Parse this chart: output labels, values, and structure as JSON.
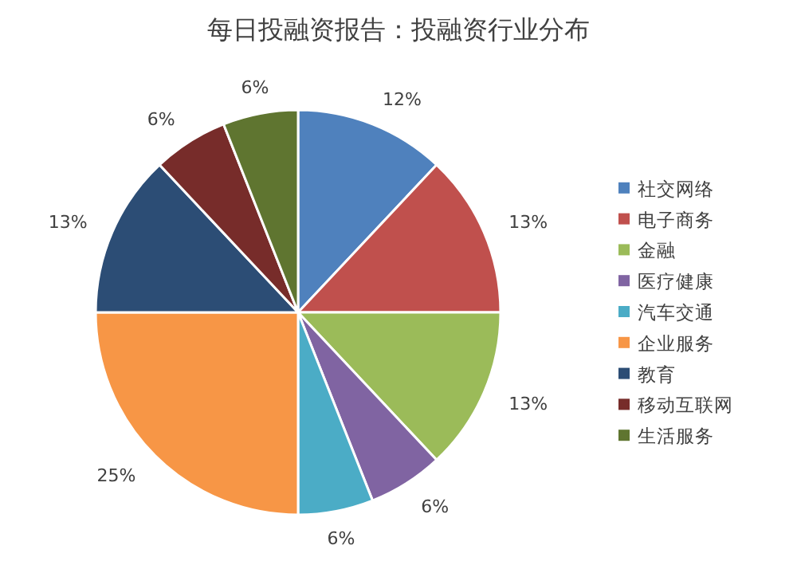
{
  "chart_data": {
    "type": "pie",
    "title": "每日投融资报告：投融资行业分布",
    "categories": [
      "社交网络",
      "电子商务",
      "金融",
      "医疗健康",
      "汽车交通",
      "企业服务",
      "教育",
      "移动互联网",
      "生活服务"
    ],
    "values": [
      12,
      13,
      13,
      6,
      6,
      25,
      13,
      6,
      6
    ],
    "colors": [
      "#4f81bd",
      "#c0504d",
      "#9bbb59",
      "#8064a2",
      "#4bacc6",
      "#f79646",
      "#2c4d75",
      "#772c2a",
      "#5f7530"
    ],
    "value_labels": [
      "12%",
      "13%",
      "13%",
      "6%",
      "6%",
      "25%",
      "13%",
      "6%",
      "6%"
    ],
    "legend": "right"
  }
}
